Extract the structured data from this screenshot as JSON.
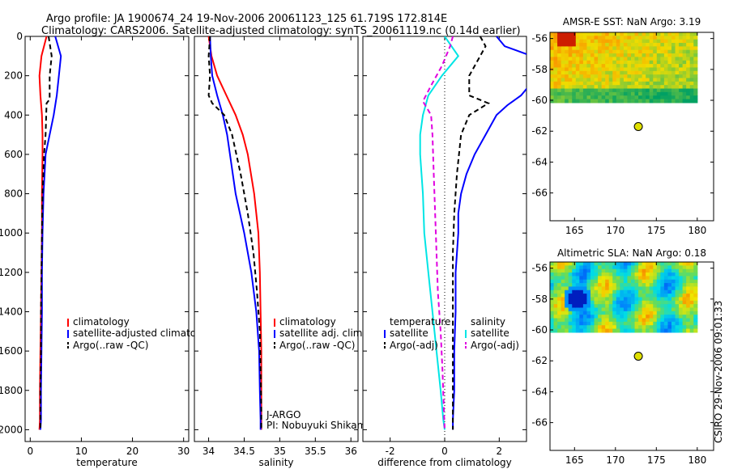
{
  "title_line1": "Argo profile: JA 1900674_24 19-Nov-2006 20061123_125 61.719S 172.814E",
  "title_line2": "Climatology: CARS2006. Satellite-adjusted climatology: synTS_20061119.nc (0.14d earlier)",
  "credit": "CSIRO 29-Nov-2006 09:01:33",
  "colors": {
    "clim": "#ff0000",
    "sat": "#0000ff",
    "argo": "#000000",
    "cyan": "#00e5e5",
    "magenta": "#e000e0",
    "marker": "#e0e000"
  },
  "chart_data": [
    {
      "type": "line",
      "xlabel": "temperature",
      "xlim": [
        -1,
        31
      ],
      "xticks": [
        0,
        10,
        20,
        30
      ],
      "ylim": [
        0,
        2060
      ],
      "yticks": [
        0,
        200,
        400,
        600,
        800,
        1000,
        1200,
        1400,
        1600,
        1800,
        2000
      ],
      "legend": [
        "climatology",
        "satellite-adjusted climatology",
        "Argo(..raw -QC)"
      ],
      "series": [
        {
          "name": "climatology",
          "color": "#ff0000",
          "dash": "",
          "x": [
            3.2,
            2.2,
            1.8,
            2.0,
            2.3,
            2.4,
            2.4,
            2.3,
            2.3,
            2.2,
            2.1,
            2.0,
            1.9,
            1.9,
            1.8
          ],
          "y": [
            0,
            100,
            200,
            300,
            400,
            500,
            600,
            800,
            1000,
            1200,
            1400,
            1600,
            1800,
            1950,
            2000
          ]
        },
        {
          "name": "satellite-adjusted climatology",
          "color": "#0000ff",
          "dash": "",
          "x": [
            4.9,
            6.0,
            5.6,
            5.2,
            4.6,
            3.8,
            3.0,
            2.6,
            2.4,
            2.3,
            2.3,
            2.2,
            2.1,
            2.1,
            2.0
          ],
          "y": [
            0,
            100,
            200,
            300,
            400,
            500,
            600,
            800,
            1000,
            1200,
            1400,
            1600,
            1800,
            1950,
            2000
          ]
        },
        {
          "name": "Argo(..raw -QC)",
          "color": "#000000",
          "dash": "6,4",
          "x": [
            3.6,
            4.2,
            3.8,
            3.8,
            3.2,
            3.0,
            2.7,
            2.4,
            2.3,
            2.2,
            2.1,
            2.1,
            2.0,
            2.0
          ],
          "y": [
            0,
            100,
            200,
            320,
            340,
            500,
            600,
            800,
            1000,
            1200,
            1400,
            1600,
            1800,
            2000
          ]
        }
      ]
    },
    {
      "type": "line",
      "xlabel": "salinity",
      "xlim": [
        33.8,
        36.1
      ],
      "xticks": [
        34,
        34.5,
        35,
        35.5,
        36
      ],
      "ylim": [
        0,
        2060
      ],
      "legend": [
        "climatology",
        "satellite adj. clim.",
        "Argo(..raw -QC)"
      ],
      "annotation": [
        "J-ARGO",
        "PI: Nobuyuki Shikama"
      ],
      "series": [
        {
          "name": "climatology",
          "color": "#ff0000",
          "dash": "",
          "x": [
            34.0,
            34.04,
            34.12,
            34.25,
            34.38,
            34.48,
            34.55,
            34.64,
            34.7,
            34.72,
            34.73,
            34.74,
            34.74,
            34.74,
            34.74
          ],
          "y": [
            0,
            100,
            200,
            300,
            400,
            500,
            600,
            800,
            1000,
            1200,
            1400,
            1600,
            1800,
            1950,
            2000
          ]
        },
        {
          "name": "satellite adj. clim.",
          "color": "#0000ff",
          "dash": "",
          "x": [
            34.02,
            34.03,
            34.05,
            34.12,
            34.2,
            34.26,
            34.3,
            34.38,
            34.5,
            34.6,
            34.67,
            34.71,
            34.72,
            34.73,
            34.73
          ],
          "y": [
            0,
            100,
            200,
            300,
            400,
            500,
            600,
            800,
            1000,
            1200,
            1400,
            1600,
            1800,
            1950,
            2000
          ]
        },
        {
          "name": "Argo(..raw -QC)",
          "color": "#000000",
          "dash": "6,4",
          "x": [
            34.02,
            34.0,
            34.02,
            34.0,
            34.05,
            34.22,
            34.33,
            34.45,
            34.55,
            34.63,
            34.68,
            34.72,
            34.73,
            34.74,
            34.74
          ],
          "y": [
            0,
            100,
            200,
            300,
            340,
            400,
            500,
            700,
            900,
            1100,
            1300,
            1500,
            1700,
            1900,
            2000
          ]
        }
      ]
    },
    {
      "type": "line",
      "xlabel": "difference from climatology",
      "xlim": [
        -3,
        3
      ],
      "xticks": [
        -2,
        0,
        2
      ],
      "ylim": [
        0,
        2060
      ],
      "legend_temperature": [
        "temperature",
        "satellite",
        "Argo(-adj)"
      ],
      "legend_salinity": [
        "salinity",
        "satellite",
        "Argo(-adj)"
      ],
      "series": [
        {
          "name": "temperature satellite",
          "color": "#0000ff",
          "dash": "",
          "x": [
            1.9,
            2.2,
            3.2,
            3.4,
            2.8,
            2.3,
            1.9,
            1.5,
            1.1,
            0.8,
            0.6,
            0.5,
            0.5,
            0.4,
            0.4,
            0.35,
            0.35,
            0.3,
            0.3
          ],
          "y": [
            0,
            50,
            100,
            200,
            300,
            350,
            400,
            500,
            600,
            700,
            800,
            900,
            1000,
            1200,
            1400,
            1600,
            1800,
            1950,
            2000
          ]
        },
        {
          "name": "temperature Argo(-adj)",
          "color": "#000000",
          "dash": "6,4",
          "x": [
            1.3,
            1.5,
            1.3,
            0.9,
            0.9,
            1.6,
            0.9,
            0.6,
            0.45,
            0.35,
            0.3,
            0.3,
            0.3,
            0.3,
            0.3
          ],
          "y": [
            0,
            50,
            100,
            200,
            300,
            340,
            400,
            500,
            700,
            900,
            1100,
            1400,
            1700,
            1900,
            2000
          ]
        },
        {
          "name": "salinity satellite",
          "color": "#00e5e5",
          "dash": "",
          "x": [
            0.0,
            0.5,
            -0.1,
            -0.6,
            -0.8,
            -0.9,
            -0.9,
            -0.8,
            -0.75,
            -0.6,
            -0.45,
            -0.3,
            -0.15,
            -0.05,
            0.0
          ],
          "y": [
            0,
            100,
            200,
            300,
            400,
            500,
            600,
            800,
            1000,
            1200,
            1400,
            1600,
            1800,
            1950,
            2000
          ]
        },
        {
          "name": "salinity Argo(-adj)",
          "color": "#e000e0",
          "dash": "6,4",
          "x": [
            0.3,
            0.2,
            -0.1,
            -0.5,
            -0.8,
            -0.5,
            -0.45,
            -0.4,
            -0.35,
            -0.3,
            -0.25,
            -0.15,
            -0.08,
            -0.03,
            0.0
          ],
          "y": [
            0,
            50,
            150,
            250,
            330,
            400,
            500,
            700,
            900,
            1100,
            1300,
            1500,
            1700,
            1900,
            2000
          ]
        }
      ]
    },
    {
      "type": "heatmap",
      "title": "AMSR-E SST: NaN Argo: 3.19",
      "xlim": [
        162,
        182
      ],
      "xticks": [
        165,
        170,
        175,
        180
      ],
      "ylim": [
        -67.8,
        -55.6
      ],
      "yticks": [
        -56,
        -58,
        -60,
        -62,
        -64,
        -66
      ],
      "argo_position": [
        172.8,
        -61.7
      ]
    },
    {
      "type": "heatmap",
      "title": "Altimetric SLA: NaN Argo: 0.18",
      "xlim": [
        162,
        182
      ],
      "xticks": [
        165,
        170,
        175,
        180
      ],
      "ylim": [
        -67.8,
        -55.6
      ],
      "yticks": [
        -56,
        -58,
        -60,
        -62,
        -64,
        -66
      ],
      "argo_position": [
        172.8,
        -61.7
      ]
    }
  ]
}
